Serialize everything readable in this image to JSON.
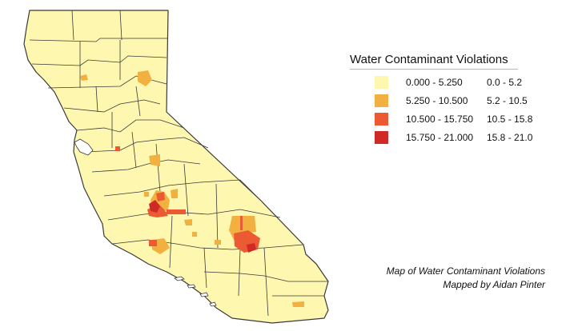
{
  "legend": {
    "title": "Water Contaminant Violations",
    "classes": [
      {
        "range": "0.000 - 5.250",
        "short": "0.0 - 5.2",
        "color": "#fdf7b0"
      },
      {
        "range": "5.250 - 10.500",
        "short": "5.2 - 10.5",
        "color": "#f2b040"
      },
      {
        "range": "10.500 - 15.750",
        "short": "10.5 - 15.8",
        "color": "#ec5a33"
      },
      {
        "range": "15.750 - 21.000",
        "short": "15.8 - 21.0",
        "color": "#cf2a25"
      }
    ]
  },
  "caption": {
    "line1": "Map of Water Contaminant Violations",
    "line2": "Mapped by Aidan Pinter"
  },
  "colors": {
    "base_fill": "#fdf7b0",
    "boundary": "#3a3a3a"
  }
}
